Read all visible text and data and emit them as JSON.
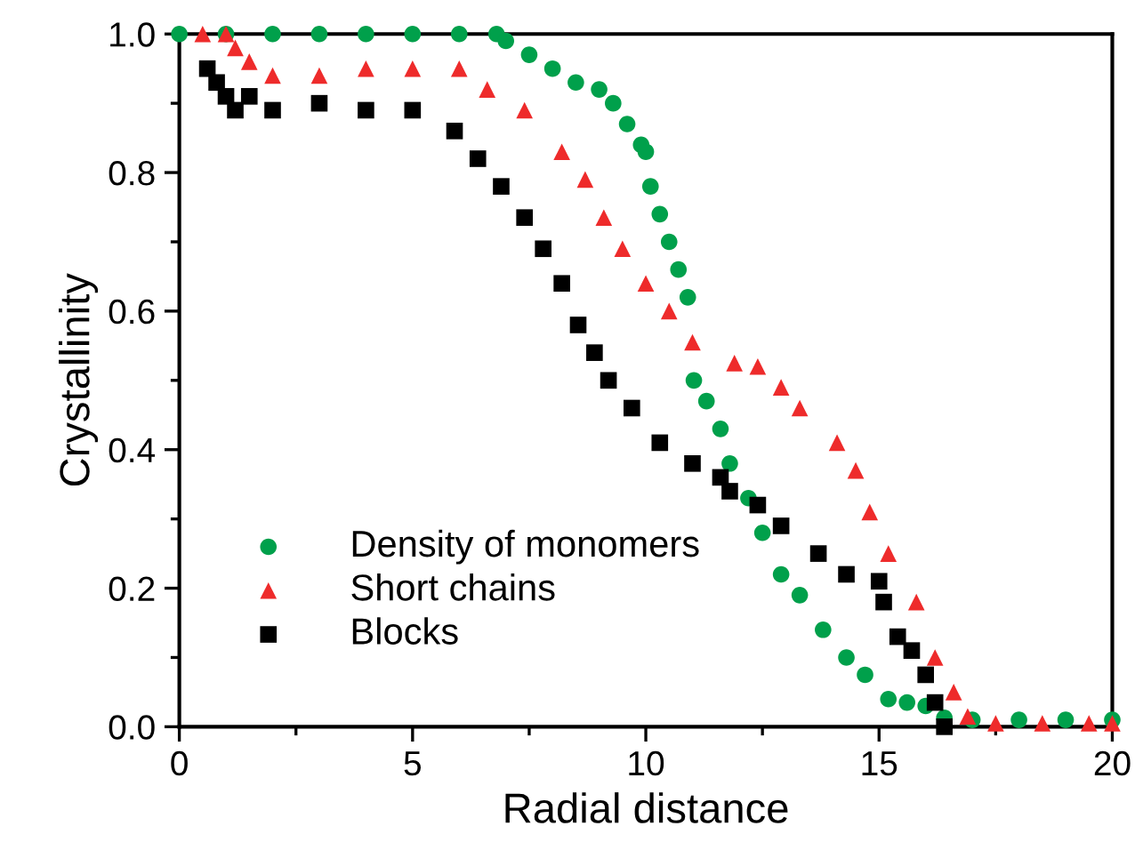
{
  "chart_data": {
    "type": "scatter",
    "xlabel": "Radial distance",
    "ylabel": "Crystallinity",
    "xlim": [
      0,
      20
    ],
    "ylim": [
      0,
      1.0
    ],
    "xticks": [
      0,
      5,
      10,
      15,
      20
    ],
    "yticks": [
      {
        "value": 0,
        "label": "0.0"
      },
      {
        "value": 0.2,
        "label": "0.2"
      },
      {
        "value": 0.4,
        "label": "0.4"
      },
      {
        "value": 0.6,
        "label": "0.6"
      },
      {
        "value": 0.8,
        "label": "0.8"
      },
      {
        "value": 1.0,
        "label": "1.0"
      }
    ],
    "grid": false,
    "legend": "bottom left",
    "series": [
      {
        "name": "Density of monomers",
        "color": "#00a04b",
        "marker": "circle",
        "x": [
          0,
          1,
          2,
          3,
          4,
          5,
          6,
          6.8,
          7.0,
          7.5,
          8.0,
          8.5,
          9.0,
          9.3,
          9.6,
          9.9,
          10.0,
          10.1,
          10.3,
          10.5,
          10.7,
          10.9,
          11.03,
          11.3,
          11.6,
          11.8,
          12.2,
          12.5,
          12.9,
          13.3,
          13.8,
          14.3,
          14.7,
          15.2,
          15.6,
          16.0,
          16.4,
          17,
          18,
          19,
          20
        ],
        "values": [
          1.0,
          1.0,
          1.0,
          1.0,
          1.0,
          1.0,
          1.0,
          1.0,
          0.99,
          0.97,
          0.95,
          0.93,
          0.92,
          0.9,
          0.87,
          0.84,
          0.83,
          0.78,
          0.74,
          0.7,
          0.66,
          0.62,
          0.5,
          0.47,
          0.43,
          0.38,
          0.33,
          0.28,
          0.22,
          0.19,
          0.14,
          0.1,
          0.075,
          0.04,
          0.035,
          0.03,
          0.013,
          0.01,
          0.01,
          0.01,
          0.01
        ]
      },
      {
        "name": "Short chains",
        "color": "#ee2b2b",
        "marker": "triangle",
        "x": [
          0.5,
          1.0,
          1.2,
          1.5,
          2,
          3,
          4,
          5,
          6,
          6.6,
          7.4,
          8.2,
          8.7,
          9.1,
          9.5,
          10.0,
          10.5,
          11.0,
          11.9,
          12.4,
          12.9,
          13.3,
          14.1,
          14.5,
          14.8,
          15.2,
          15.8,
          16.2,
          16.6,
          16.9,
          17.5,
          18.5,
          19.5,
          20
        ],
        "values": [
          1.0,
          1.0,
          0.98,
          0.96,
          0.94,
          0.94,
          0.95,
          0.95,
          0.95,
          0.92,
          0.89,
          0.83,
          0.79,
          0.735,
          0.69,
          0.64,
          0.6,
          0.555,
          0.525,
          0.52,
          0.49,
          0.46,
          0.41,
          0.37,
          0.31,
          0.25,
          0.18,
          0.1,
          0.05,
          0.015,
          0.005,
          0.005,
          0.005,
          0.005
        ]
      },
      {
        "name": "Blocks",
        "color": "#000000",
        "marker": "square",
        "x": [
          0.6,
          0.8,
          1.0,
          1.2,
          1.5,
          2,
          3,
          4,
          5,
          5.9,
          6.4,
          6.9,
          7.4,
          7.8,
          8.2,
          8.55,
          8.9,
          9.2,
          9.7,
          10.3,
          11.0,
          11.6,
          11.8,
          12.4,
          12.9,
          13.7,
          14.3,
          15.0,
          15.1,
          15.4,
          15.7,
          16.0,
          16.2,
          16.4
        ],
        "values": [
          0.95,
          0.93,
          0.91,
          0.89,
          0.91,
          0.89,
          0.9,
          0.89,
          0.89,
          0.86,
          0.82,
          0.78,
          0.735,
          0.69,
          0.64,
          0.58,
          0.54,
          0.5,
          0.46,
          0.41,
          0.38,
          0.36,
          0.34,
          0.32,
          0.29,
          0.25,
          0.22,
          0.21,
          0.18,
          0.13,
          0.11,
          0.075,
          0.035,
          0.0
        ]
      }
    ]
  }
}
